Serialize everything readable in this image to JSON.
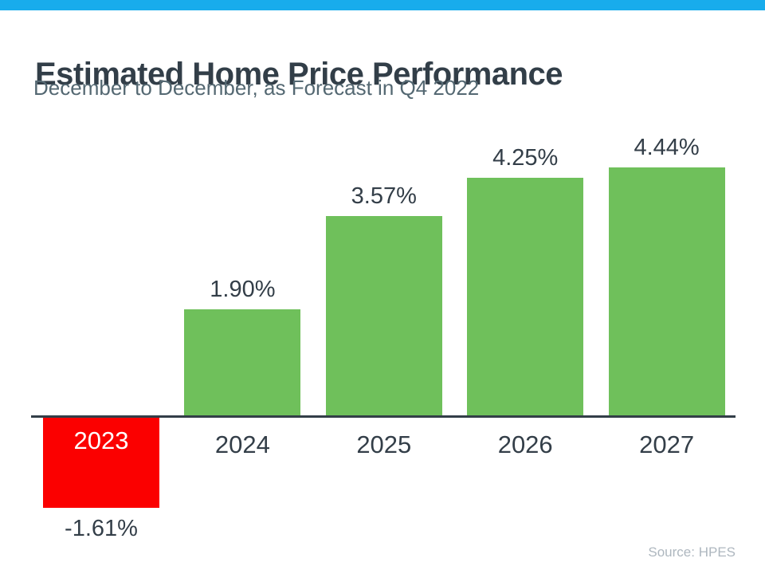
{
  "header": {
    "title": "Estimated Home Price Performance",
    "subtitle": "December to December, as Forecast in Q4 2022",
    "accent_color": "#18ACEC"
  },
  "chart_data": {
    "type": "bar",
    "categories": [
      "2023",
      "2024",
      "2025",
      "2026",
      "2027"
    ],
    "values": [
      -1.61,
      1.9,
      3.57,
      4.25,
      4.44
    ],
    "value_labels": [
      "-1.61%",
      "1.90%",
      "3.57%",
      "4.25%",
      "4.44%"
    ],
    "title": "Estimated Home Price Performance",
    "subtitle": "December to December, as Forecast in Q4 2022",
    "xlabel": "",
    "ylabel": "",
    "ylim": [
      -2,
      5
    ],
    "baseline": 0,
    "grid": false,
    "legend": false,
    "colors": {
      "positive_bar": "#6FC05B",
      "negative_bar": "#FB0000",
      "axis": "#333E48",
      "label_text": "#333E48",
      "negative_year_text": "#FFFFFF"
    }
  },
  "footer": {
    "source": "Source: HPES"
  }
}
